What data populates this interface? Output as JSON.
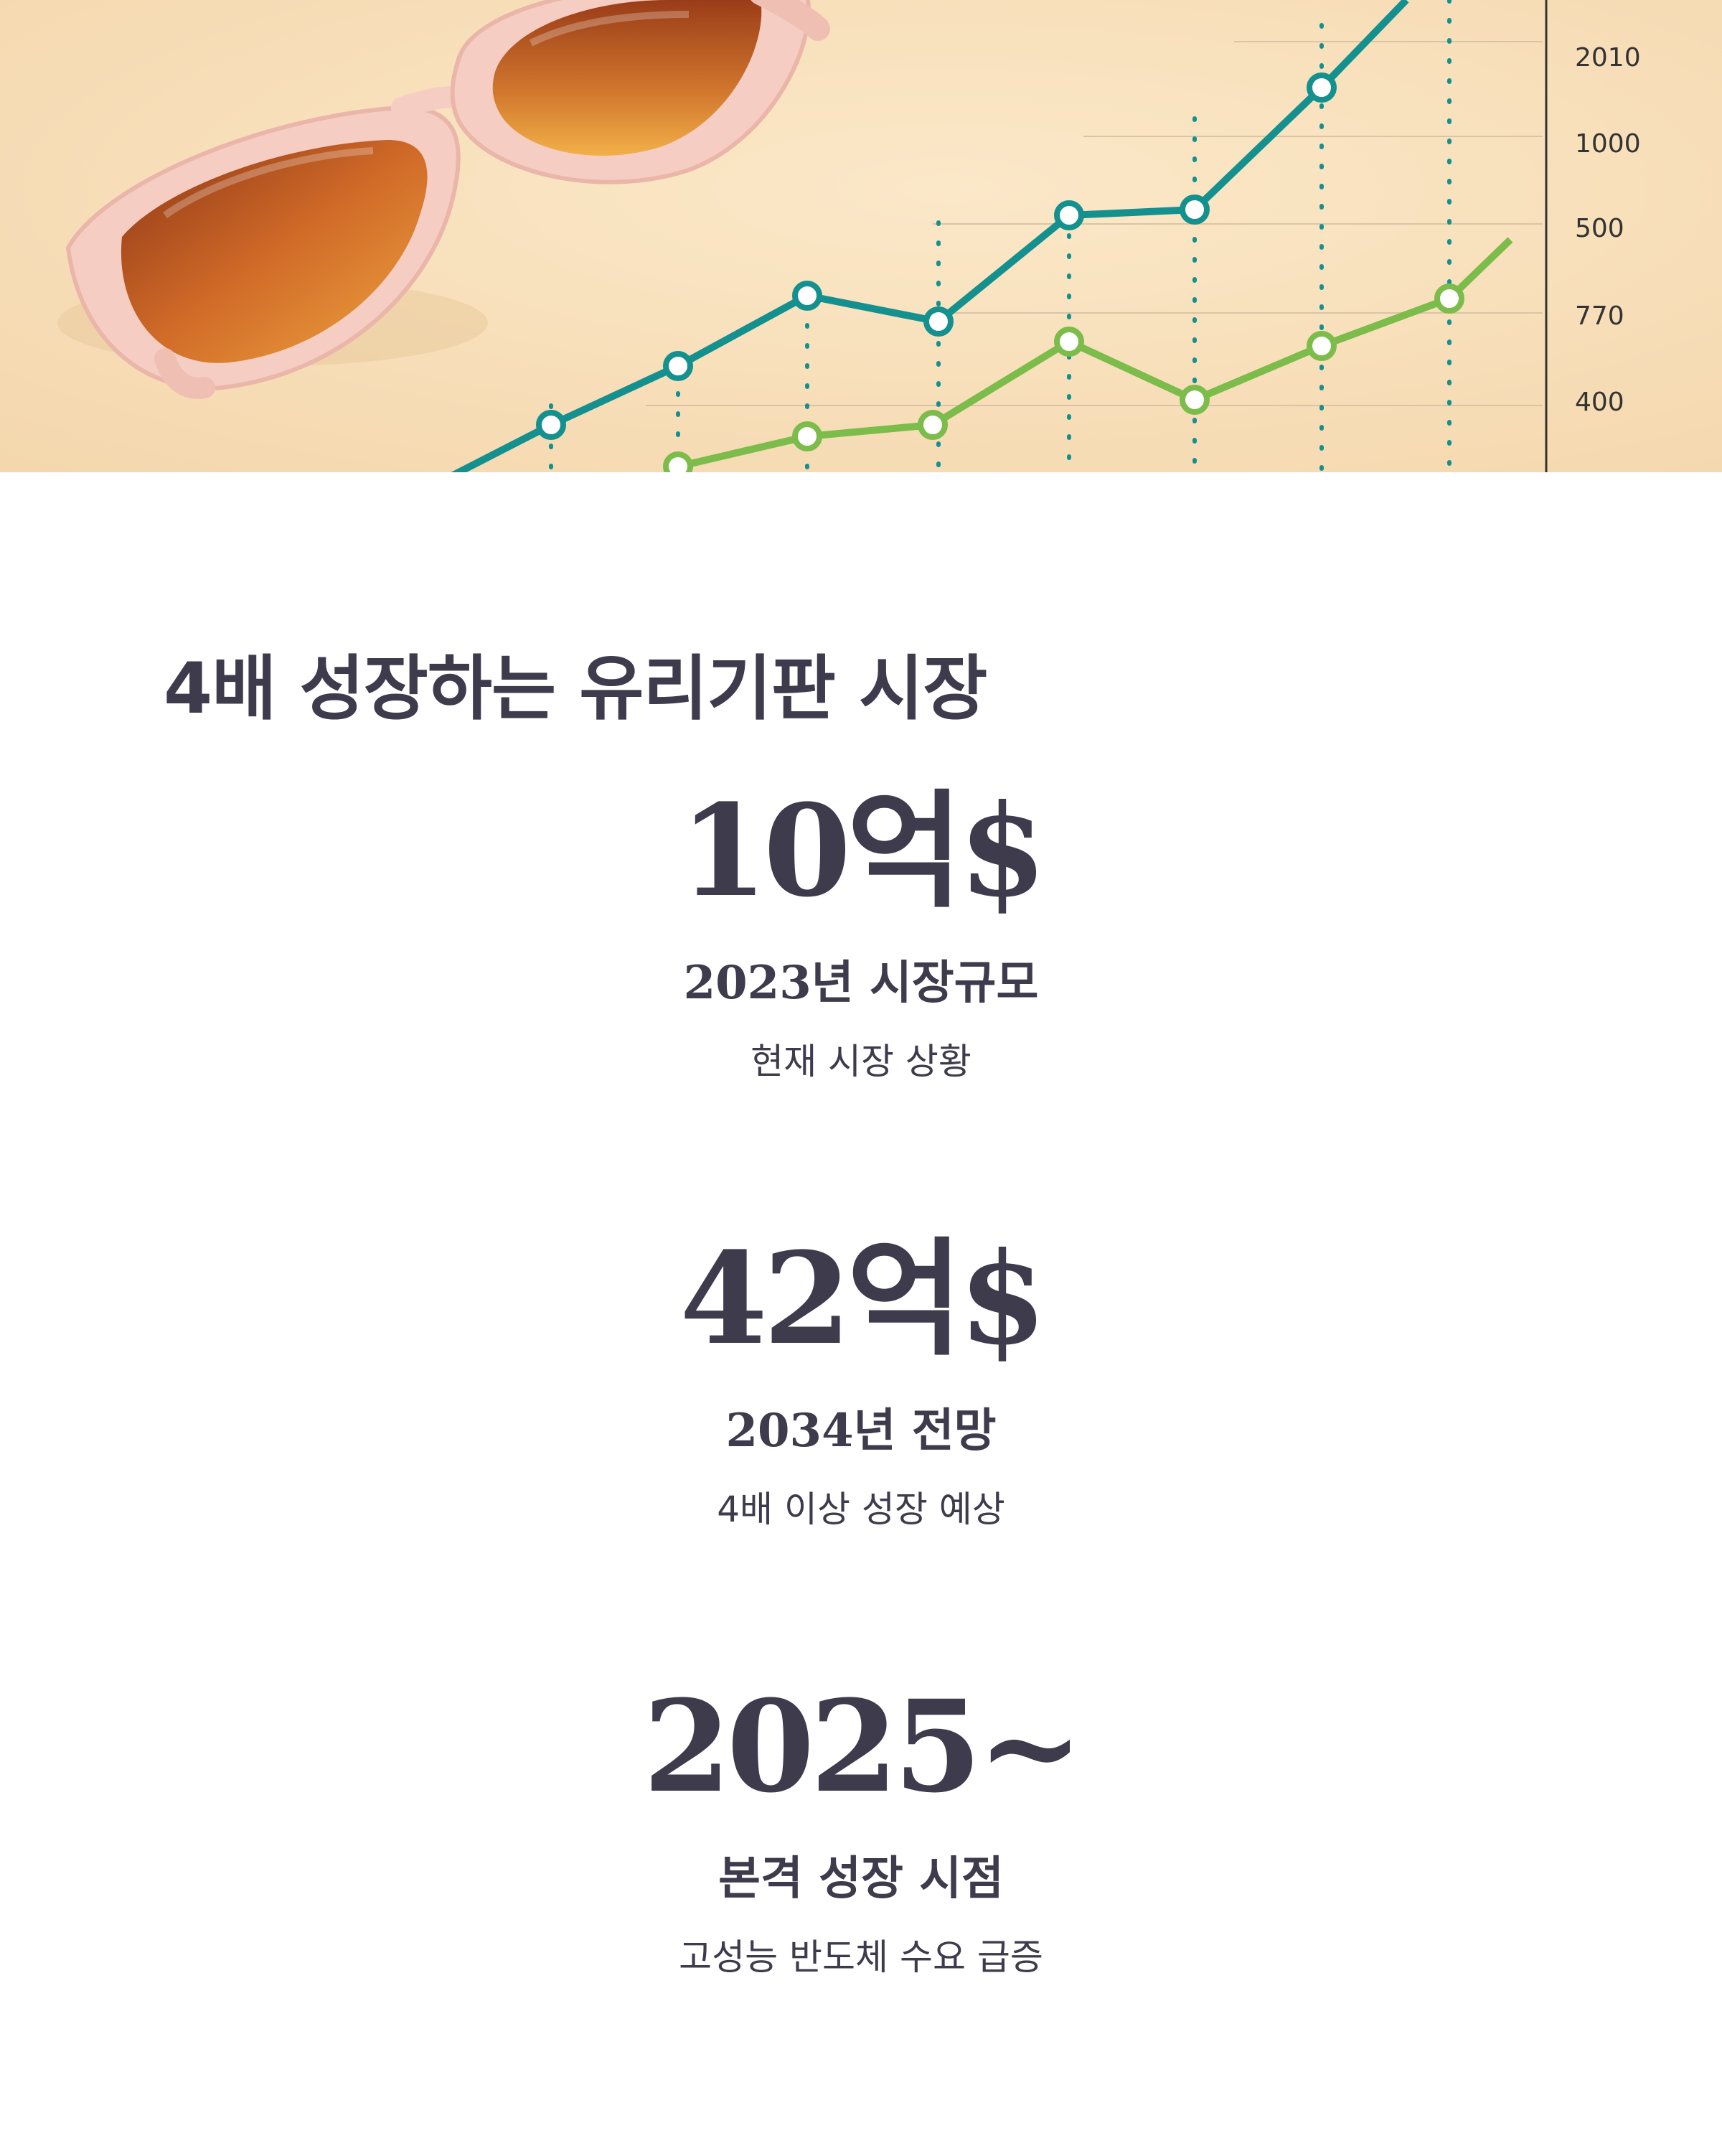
{
  "hero": {
    "axis_labels": [
      "2010",
      "1000",
      "500",
      "770",
      "400"
    ],
    "colors": {
      "background": "#f8e0bb",
      "teal_line": "#14908f",
      "green_line": "#7bbc4a",
      "sunglasses_frame": "#f4c6bb",
      "lens": "#c9642a"
    },
    "icons": [
      "sunglasses-illustration",
      "line-chart-illustration"
    ]
  },
  "title": "4배 성장하는 유리기판 시장",
  "stats": [
    {
      "value": "10억$",
      "label": "2023년 시장규모",
      "desc": "현재 시장 상황"
    },
    {
      "value": "42억$",
      "label": "2034년 전망",
      "desc": "4배 이상 성장 예상"
    },
    {
      "value": "2025~",
      "label": "본격 성장 시점",
      "desc": "고성능 반도체 수요 급증"
    }
  ]
}
